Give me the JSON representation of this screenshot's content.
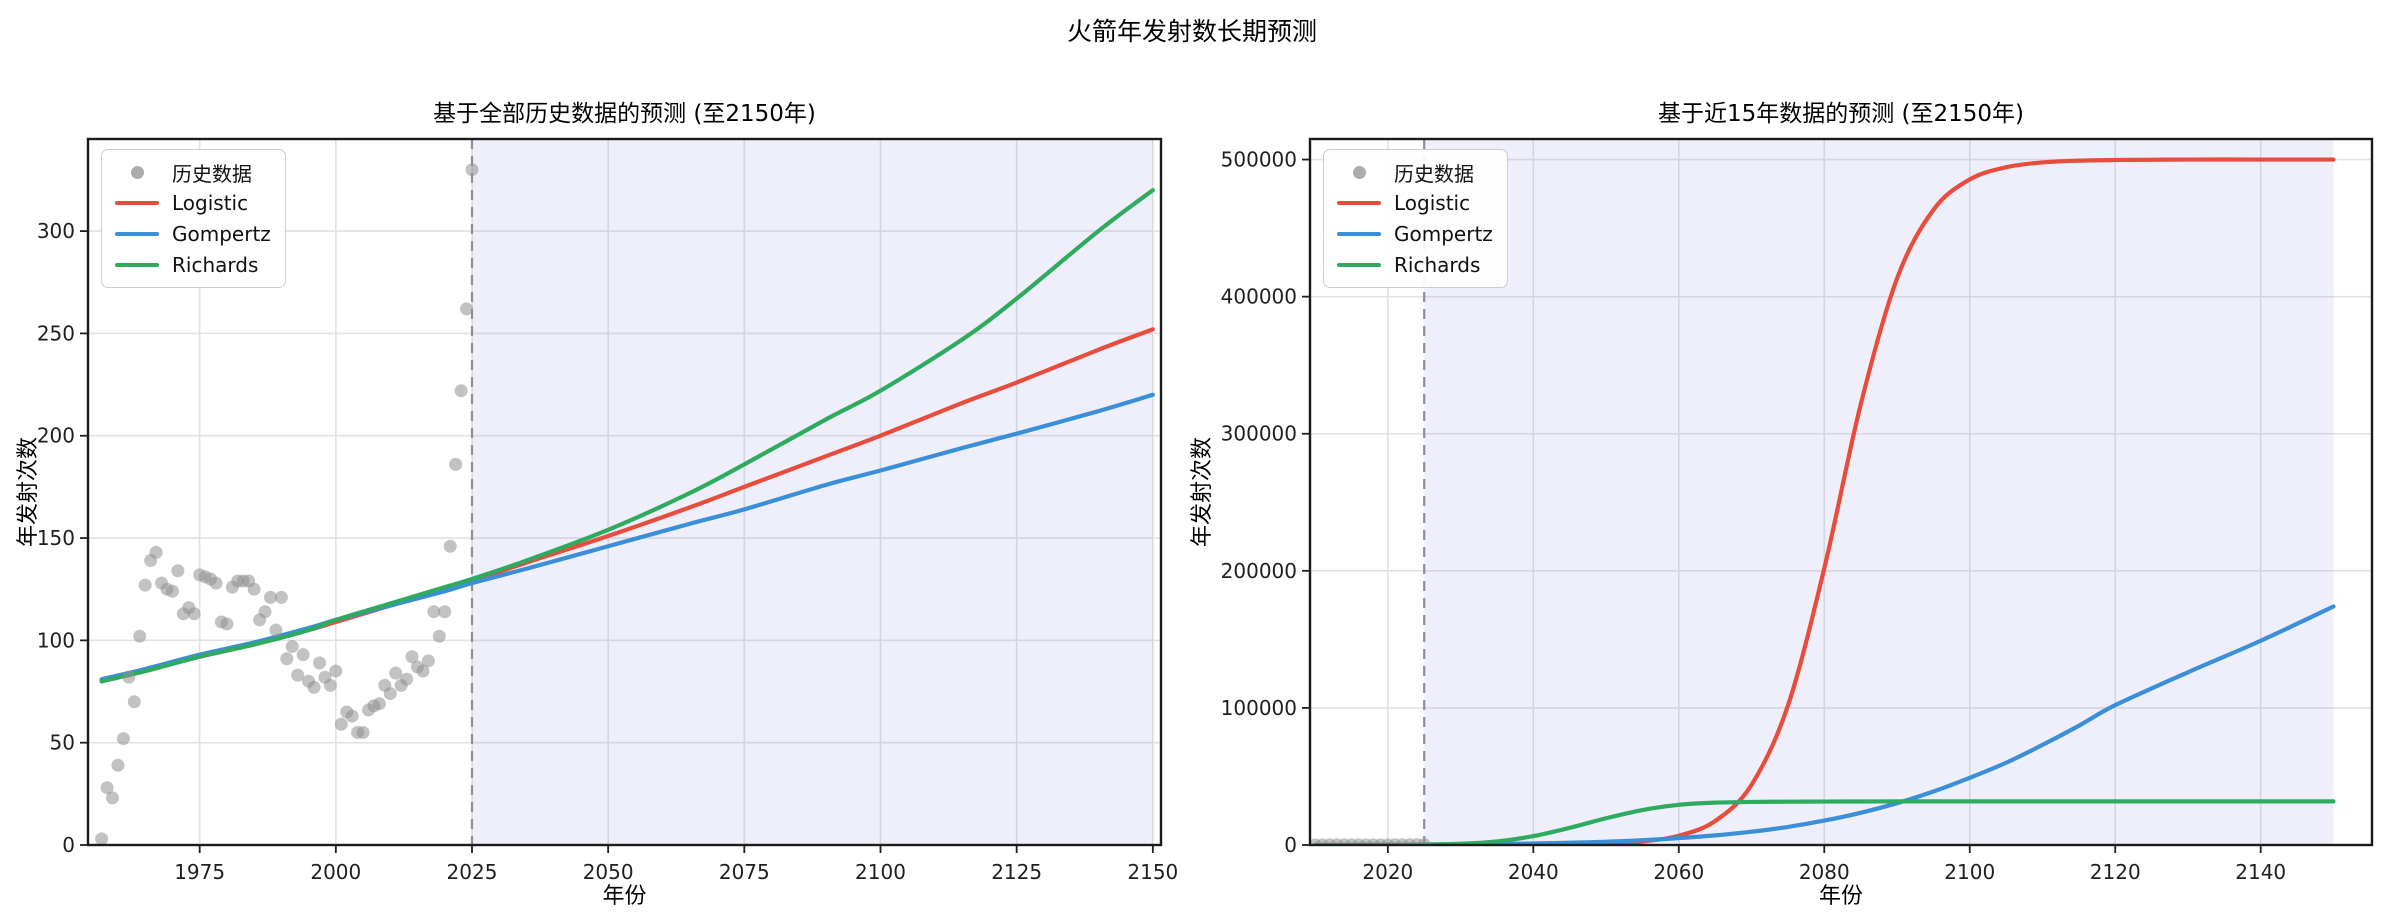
{
  "suptitle": "火箭年发射数长期预测",
  "style": {
    "grid_color": "#e2e2e2",
    "spine_color": "#1a1a1a",
    "tick_color": "#1f1f1f",
    "forecast_fill": "#5a60cf",
    "forecast_opacity": 0.1,
    "vline_color": "#8f8f8f",
    "scatter_color": "#8f8f8f",
    "scatter_opacity": 0.55
  },
  "chart_data": [
    {
      "type": "scatter+line",
      "title": "基于全部历史数据的预测 (至2150年)",
      "xlabel": "年份",
      "ylabel": "年发射次数",
      "xlim": [
        1954.5,
        2151.5
      ],
      "ylim": [
        0,
        345
      ],
      "xticks": [
        1975,
        2000,
        2025,
        2050,
        2075,
        2100,
        2125,
        2150
      ],
      "yticks": [
        0,
        50,
        100,
        150,
        200,
        250,
        300
      ],
      "grid": true,
      "legend_position": "upper left",
      "forecast": {
        "start": 2025,
        "end": 2150
      },
      "historical": {
        "label": "历史数据",
        "color": "#9e9e9e",
        "years": [
          1957,
          1958,
          1959,
          1960,
          1961,
          1962,
          1963,
          1964,
          1965,
          1966,
          1967,
          1968,
          1969,
          1970,
          1971,
          1972,
          1973,
          1974,
          1975,
          1976,
          1977,
          1978,
          1979,
          1980,
          1981,
          1982,
          1983,
          1984,
          1985,
          1986,
          1987,
          1988,
          1989,
          1990,
          1991,
          1992,
          1993,
          1994,
          1995,
          1996,
          1997,
          1998,
          1999,
          2000,
          2001,
          2002,
          2003,
          2004,
          2005,
          2006,
          2007,
          2008,
          2009,
          2010,
          2011,
          2012,
          2013,
          2014,
          2015,
          2016,
          2017,
          2018,
          2019,
          2020,
          2021,
          2022,
          2023,
          2024,
          2025
        ],
        "values": [
          3,
          28,
          23,
          39,
          52,
          82,
          70,
          102,
          127,
          139,
          143,
          128,
          125,
          124,
          134,
          113,
          116,
          113,
          132,
          131,
          130,
          128,
          109,
          108,
          126,
          129,
          129,
          129,
          125,
          110,
          114,
          121,
          105,
          121,
          91,
          97,
          83,
          93,
          80,
          77,
          89,
          82,
          78,
          85,
          59,
          65,
          63,
          55,
          55,
          66,
          68,
          69,
          78,
          74,
          84,
          78,
          81,
          92,
          87,
          85,
          90,
          114,
          102,
          114,
          146,
          186,
          222,
          262,
          330
        ]
      },
      "series": [
        {
          "name": "Logistic",
          "color": "#e74c3c",
          "x": [
            1957,
            1965,
            1975,
            1985,
            1995,
            2000,
            2010,
            2020,
            2025,
            2035,
            2050,
            2065,
            2075,
            2090,
            2100,
            2115,
            2125,
            2140,
            2150
          ],
          "y": [
            80,
            85,
            92,
            98,
            105,
            109,
            117,
            125,
            129,
            138,
            151,
            165,
            175,
            190,
            200,
            216,
            226,
            242,
            252
          ]
        },
        {
          "name": "Gompertz",
          "color": "#3b8ed8",
          "x": [
            1957,
            1965,
            1975,
            1985,
            1995,
            2000,
            2010,
            2020,
            2025,
            2035,
            2050,
            2065,
            2075,
            2090,
            2100,
            2115,
            2125,
            2140,
            2150
          ],
          "y": [
            81,
            86,
            93,
            99,
            106,
            110,
            117,
            124,
            128,
            135,
            146,
            157,
            164,
            176,
            183,
            194,
            201,
            212,
            220
          ]
        },
        {
          "name": "Richards",
          "color": "#2eab5f",
          "x": [
            1957,
            1965,
            1975,
            1985,
            1995,
            2000,
            2010,
            2020,
            2025,
            2035,
            2050,
            2065,
            2075,
            2090,
            2100,
            2115,
            2125,
            2140,
            2150
          ],
          "y": [
            80,
            85,
            92,
            98,
            105,
            110,
            118,
            126,
            130,
            139,
            154,
            172,
            186,
            208,
            222,
            247,
            267,
            300,
            320
          ]
        }
      ]
    },
    {
      "type": "scatter+line",
      "title": "基于近15年数据的预测 (至2150年)",
      "xlabel": "年份",
      "ylabel": "年发射次数",
      "xlim": [
        2009.3,
        2155.3
      ],
      "ylim": [
        0,
        515000
      ],
      "xticks": [
        2020,
        2040,
        2060,
        2080,
        2100,
        2120,
        2140
      ],
      "yticks": [
        0,
        100000,
        200000,
        300000,
        400000,
        500000
      ],
      "grid": true,
      "legend_position": "upper left",
      "forecast": {
        "start": 2025,
        "end": 2150
      },
      "historical": {
        "label": "历史数据",
        "color": "#9e9e9e",
        "years": [
          2010,
          2011,
          2012,
          2013,
          2014,
          2015,
          2016,
          2017,
          2018,
          2019,
          2020,
          2021,
          2022,
          2023,
          2024,
          2025
        ],
        "values": [
          74,
          84,
          78,
          81,
          92,
          87,
          85,
          90,
          114,
          102,
          114,
          146,
          186,
          222,
          262,
          330
        ]
      },
      "series": [
        {
          "name": "Logistic",
          "color": "#e74c3c",
          "x": [
            2010,
            2015,
            2020,
            2025,
            2030,
            2035,
            2040,
            2045,
            2050,
            2055,
            2060,
            2065,
            2070,
            2075,
            2080,
            2085,
            2090,
            2095,
            2100,
            2105,
            2110,
            2115,
            2120,
            2130,
            2140,
            2150
          ],
          "y": [
            0,
            1,
            3,
            7,
            20,
            52,
            139,
            367,
            973,
            2570,
            6760,
            17500,
            43900,
            101600,
            201800,
            321100,
            413200,
            463300,
            485500,
            494400,
            497900,
            499200,
            499700,
            500000,
            500000,
            500000
          ]
        },
        {
          "name": "Gompertz",
          "color": "#3b8ed8",
          "x": [
            2010,
            2015,
            2020,
            2025,
            2030,
            2035,
            2040,
            2045,
            2050,
            2055,
            2060,
            2065,
            2070,
            2075,
            2080,
            2085,
            2090,
            2095,
            2100,
            2105,
            2110,
            2115,
            2120,
            2130,
            2140,
            2150
          ],
          "y": [
            100,
            170,
            250,
            350,
            500,
            750,
            1100,
            1650,
            2400,
            3500,
            5000,
            7000,
            9700,
            13200,
            17800,
            23500,
            30500,
            39000,
            49000,
            60000,
            73000,
            87000,
            102000,
            126000,
            149000,
            174000
          ]
        },
        {
          "name": "Richards",
          "color": "#2eab5f",
          "x": [
            2010,
            2015,
            2020,
            2025,
            2030,
            2035,
            2040,
            2045,
            2050,
            2055,
            2060,
            2065,
            2070,
            2075,
            2080,
            2085,
            2090,
            2095,
            2100,
            2105,
            2110,
            2115,
            2120,
            2130,
            2140,
            2150
          ],
          "y": [
            0,
            50,
            150,
            300,
            900,
            2600,
            6500,
            12500,
            19500,
            25500,
            29300,
            30900,
            31400,
            31600,
            31700,
            31750,
            31800,
            31800,
            31800,
            31800,
            31800,
            31800,
            31800,
            31800,
            31800,
            31800
          ]
        }
      ]
    }
  ]
}
